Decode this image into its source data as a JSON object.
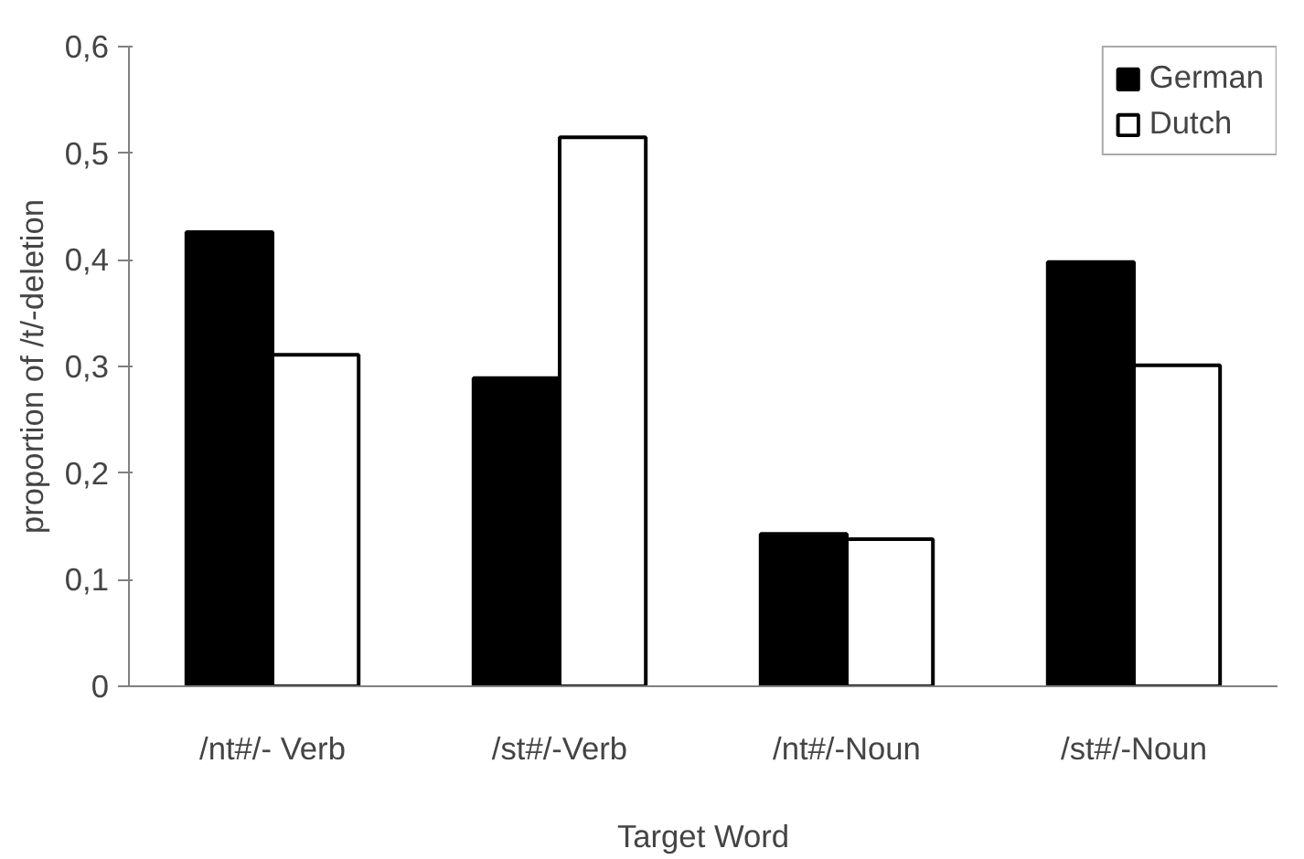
{
  "chart_data": {
    "type": "bar",
    "xlabel": "Target Word",
    "ylabel": "proportion of /t/-deletion",
    "categories": [
      "/nt#/- Verb",
      "/st#/-Verb",
      "/nt#/-Noun",
      "/st#/-Noun"
    ],
    "series": [
      {
        "name": "German",
        "color": "#000000",
        "values": [
          0.426,
          0.289,
          0.143,
          0.398
        ]
      },
      {
        "name": "Dutch",
        "color": "#ffffff",
        "values": [
          0.311,
          0.515,
          0.138,
          0.301
        ]
      }
    ],
    "ylim": [
      0,
      0.6
    ],
    "yticks": [
      {
        "value": 0,
        "label": "0"
      },
      {
        "value": 0.1,
        "label": "0,1"
      },
      {
        "value": 0.2,
        "label": "0,2"
      },
      {
        "value": 0.3,
        "label": "0,3"
      },
      {
        "value": 0.4,
        "label": "0,4"
      },
      {
        "value": 0.5,
        "label": "0,5"
      },
      {
        "value": 0.6,
        "label": "0,6"
      }
    ],
    "grid": false,
    "legend": "top right"
  }
}
